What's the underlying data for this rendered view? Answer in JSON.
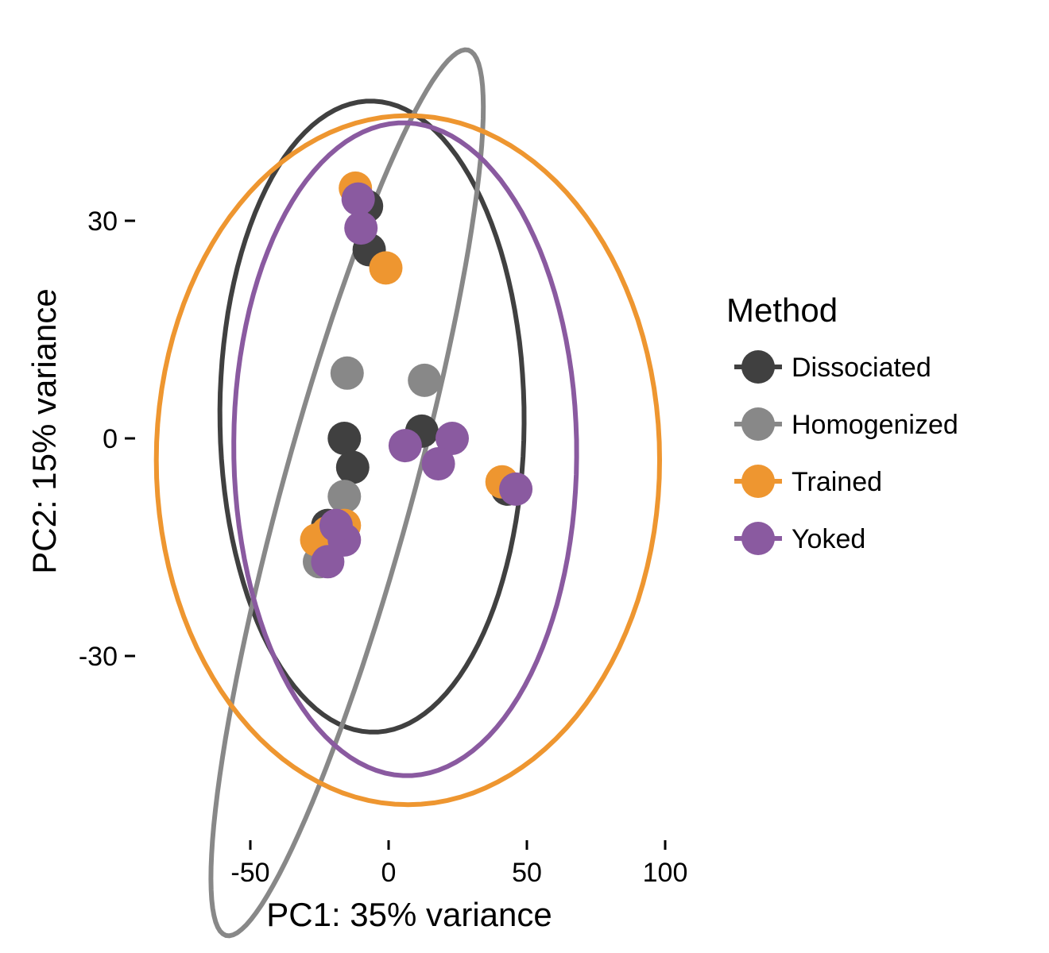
{
  "chart_data": {
    "type": "scatter",
    "xlabel": "PC1: 35% variance",
    "ylabel": "PC2: 15% variance",
    "xlim": [
      -90,
      100
    ],
    "ylim": [
      -50,
      52
    ],
    "x_ticks": [
      -50,
      0,
      50,
      100
    ],
    "y_ticks": [
      -30,
      0,
      30
    ],
    "x_tick_labels": [
      "-50",
      "0",
      "50",
      "100"
    ],
    "y_tick_labels": [
      "-30",
      "0",
      "30"
    ],
    "grid": false,
    "ellipses": true,
    "legend": {
      "title": "Method",
      "placement": "right"
    },
    "series": [
      {
        "name": "Dissociated",
        "color": "#404040",
        "points": [
          {
            "x": -8,
            "y": 32
          },
          {
            "x": -7,
            "y": 26
          },
          {
            "x": -16,
            "y": 0
          },
          {
            "x": -13,
            "y": -4
          },
          {
            "x": 12,
            "y": 1
          },
          {
            "x": -22,
            "y": -12
          },
          {
            "x": 43,
            "y": -7
          }
        ],
        "ellipse": {
          "cx": -6,
          "cy": 3,
          "rx": 55,
          "ry": 43.5,
          "angle": -1
        }
      },
      {
        "name": "Homogenized",
        "color": "#888888",
        "points": [
          {
            "x": -15,
            "y": 9
          },
          {
            "x": 13,
            "y": 8
          },
          {
            "x": -16,
            "y": -8
          },
          {
            "x": -25,
            "y": -17
          }
        ],
        "ellipse": {
          "cx": -15,
          "cy": -7.5,
          "rx": 76,
          "ry": 19.5,
          "angle": 52
        }
      },
      {
        "name": "Trained",
        "color": "#EE9630",
        "points": [
          {
            "x": -12,
            "y": 34.5
          },
          {
            "x": -1,
            "y": 23.5
          },
          {
            "x": 41,
            "y": -6
          },
          {
            "x": -26,
            "y": -14
          },
          {
            "x": -16,
            "y": -12
          },
          {
            "x": -22,
            "y": -13
          }
        ],
        "ellipse": {
          "cx": 7,
          "cy": -3,
          "rx": 91,
          "ry": 47.5,
          "angle": 0
        }
      },
      {
        "name": "Yoked",
        "color": "#8A5AA0",
        "points": [
          {
            "x": -11,
            "y": 33
          },
          {
            "x": -10,
            "y": 29
          },
          {
            "x": 6,
            "y": -1
          },
          {
            "x": 23,
            "y": 0
          },
          {
            "x": 18,
            "y": -3.5
          },
          {
            "x": 46,
            "y": -7
          },
          {
            "x": -16,
            "y": -14
          },
          {
            "x": -22,
            "y": -17
          },
          {
            "x": -19,
            "y": -12
          }
        ],
        "ellipse": {
          "cx": 6,
          "cy": -1.5,
          "rx": 62,
          "ry": 45,
          "angle": -1
        }
      }
    ]
  }
}
